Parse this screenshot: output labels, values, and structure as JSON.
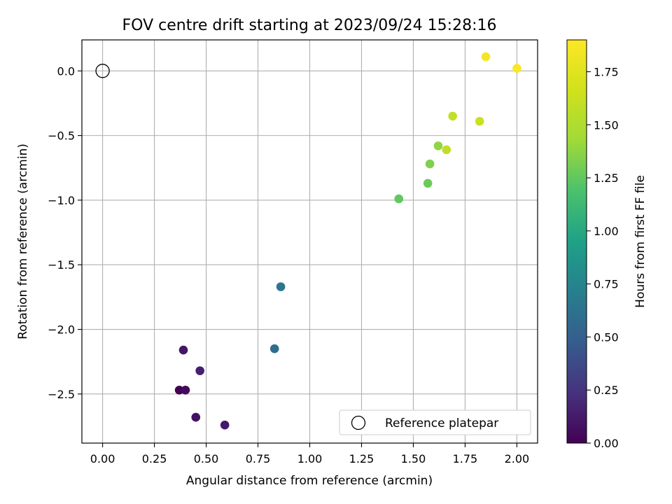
{
  "chart_data": {
    "type": "scatter",
    "title": "FOV centre drift starting at 2023/09/24 15:28:16",
    "xlabel": "Angular distance from reference (arcmin)",
    "ylabel": "Rotation from reference (arcmin)",
    "xlim": [
      -0.1,
      2.1
    ],
    "ylim": [
      -2.88,
      0.24
    ],
    "xticks": [
      0.0,
      0.25,
      0.5,
      0.75,
      1.0,
      1.25,
      1.5,
      1.75,
      2.0
    ],
    "xtick_labels": [
      "0.00",
      "0.25",
      "0.50",
      "0.75",
      "1.00",
      "1.25",
      "1.50",
      "1.75",
      "2.00"
    ],
    "yticks": [
      0.0,
      -0.5,
      -1.0,
      -1.5,
      -2.0,
      -2.5
    ],
    "ytick_labels": [
      "0.0",
      "−0.5",
      "−1.0",
      "−1.5",
      "−2.0",
      "−2.5"
    ],
    "grid": true,
    "legend": {
      "position": "lower-right",
      "entries": [
        "Reference platepar"
      ]
    },
    "reference_point": {
      "x": 0.0,
      "y": 0.0,
      "marker": "open-circle"
    },
    "colorbar": {
      "label": "Hours from first FF file",
      "colormap": "viridis",
      "range": [
        0.0,
        1.9
      ],
      "ticks": [
        0.0,
        0.25,
        0.5,
        0.75,
        1.0,
        1.25,
        1.5,
        1.75
      ],
      "tick_labels": [
        "0.00",
        "0.25",
        "0.50",
        "0.75",
        "1.00",
        "1.25",
        "1.50",
        "1.75"
      ]
    },
    "points": [
      {
        "x": 0.37,
        "y": -2.47,
        "hours": 0.0
      },
      {
        "x": 0.4,
        "y": -2.47,
        "hours": 0.05
      },
      {
        "x": 0.45,
        "y": -2.68,
        "hours": 0.08
      },
      {
        "x": 0.59,
        "y": -2.74,
        "hours": 0.12
      },
      {
        "x": 0.39,
        "y": -2.16,
        "hours": 0.1
      },
      {
        "x": 0.47,
        "y": -2.32,
        "hours": 0.15
      },
      {
        "x": 0.83,
        "y": -2.15,
        "hours": 0.6
      },
      {
        "x": 0.86,
        "y": -1.67,
        "hours": 0.65
      },
      {
        "x": 1.43,
        "y": -0.99,
        "hours": 1.25
      },
      {
        "x": 1.57,
        "y": -0.87,
        "hours": 1.28
      },
      {
        "x": 1.58,
        "y": -0.72,
        "hours": 1.33
      },
      {
        "x": 1.62,
        "y": -0.58,
        "hours": 1.38
      },
      {
        "x": 1.66,
        "y": -0.61,
        "hours": 1.58
      },
      {
        "x": 1.69,
        "y": -0.35,
        "hours": 1.6
      },
      {
        "x": 1.82,
        "y": -0.39,
        "hours": 1.64
      },
      {
        "x": 1.85,
        "y": 0.11,
        "hours": 1.86
      },
      {
        "x": 2.0,
        "y": 0.02,
        "hours": 1.89
      }
    ]
  },
  "colors": {
    "axis": "#000000",
    "grid": "#b0b0b0",
    "reference_marker": "#000000",
    "legend_border": "#cccccc"
  }
}
